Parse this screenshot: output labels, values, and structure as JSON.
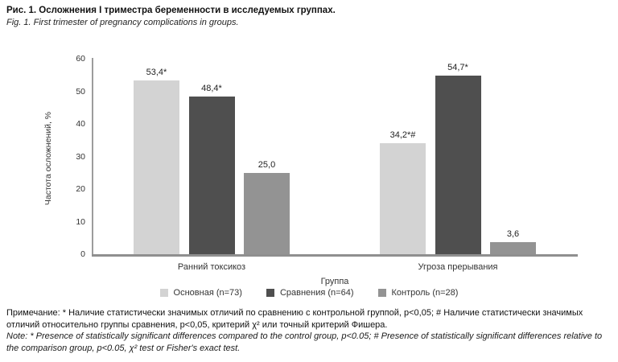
{
  "header": {
    "title_ru": "Рис. 1. Осложнения I триместра беременности в исследуемых группах.",
    "title_en": "Fig. 1. First trimester of pregnancy complications in groups."
  },
  "chart_data": {
    "type": "bar",
    "categories": [
      "Ранний токсикоз",
      "Угроза прерывания"
    ],
    "series": [
      {
        "name": "Основная (n=73)",
        "color": "#d3d3d3",
        "values": [
          53.4,
          34.2
        ],
        "value_labels": [
          "53,4*",
          "34,2*#"
        ]
      },
      {
        "name": "Сравнения (n=64)",
        "color": "#4f4f4f",
        "values": [
          48.4,
          54.7
        ],
        "value_labels": [
          "48,4*",
          "54,7*"
        ]
      },
      {
        "name": "Контроль (n=28)",
        "color": "#939393",
        "values": [
          25.0,
          3.6
        ],
        "value_labels": [
          "25,0",
          "3,6"
        ]
      }
    ],
    "xlabel": "Группа",
    "ylabel": "Частота осложнений, %",
    "ylim": [
      0,
      60
    ],
    "yticks": [
      0,
      10,
      20,
      30,
      40,
      50,
      60
    ],
    "grid": false,
    "legend_position": "bottom"
  },
  "notes": {
    "note_ru": "Примечание: * Наличие статистически значимых отличий по сравнению с контрольной группой, p<0,05; # Наличие статистически значимых отличий относительно группы сравнения, p<0,05, критерий χ² или точный критерий Фишера.",
    "note_en": "Note: * Presence of statistically significant differences compared to the control group, p<0.05; # Presence of statistically significant differences relative to the comparison group, p<0.05, χ² test or Fisher's exact test."
  },
  "colors": {
    "axis": "#9c9c9c",
    "baseline": "#8f8f8f",
    "background": "#ffffff"
  }
}
